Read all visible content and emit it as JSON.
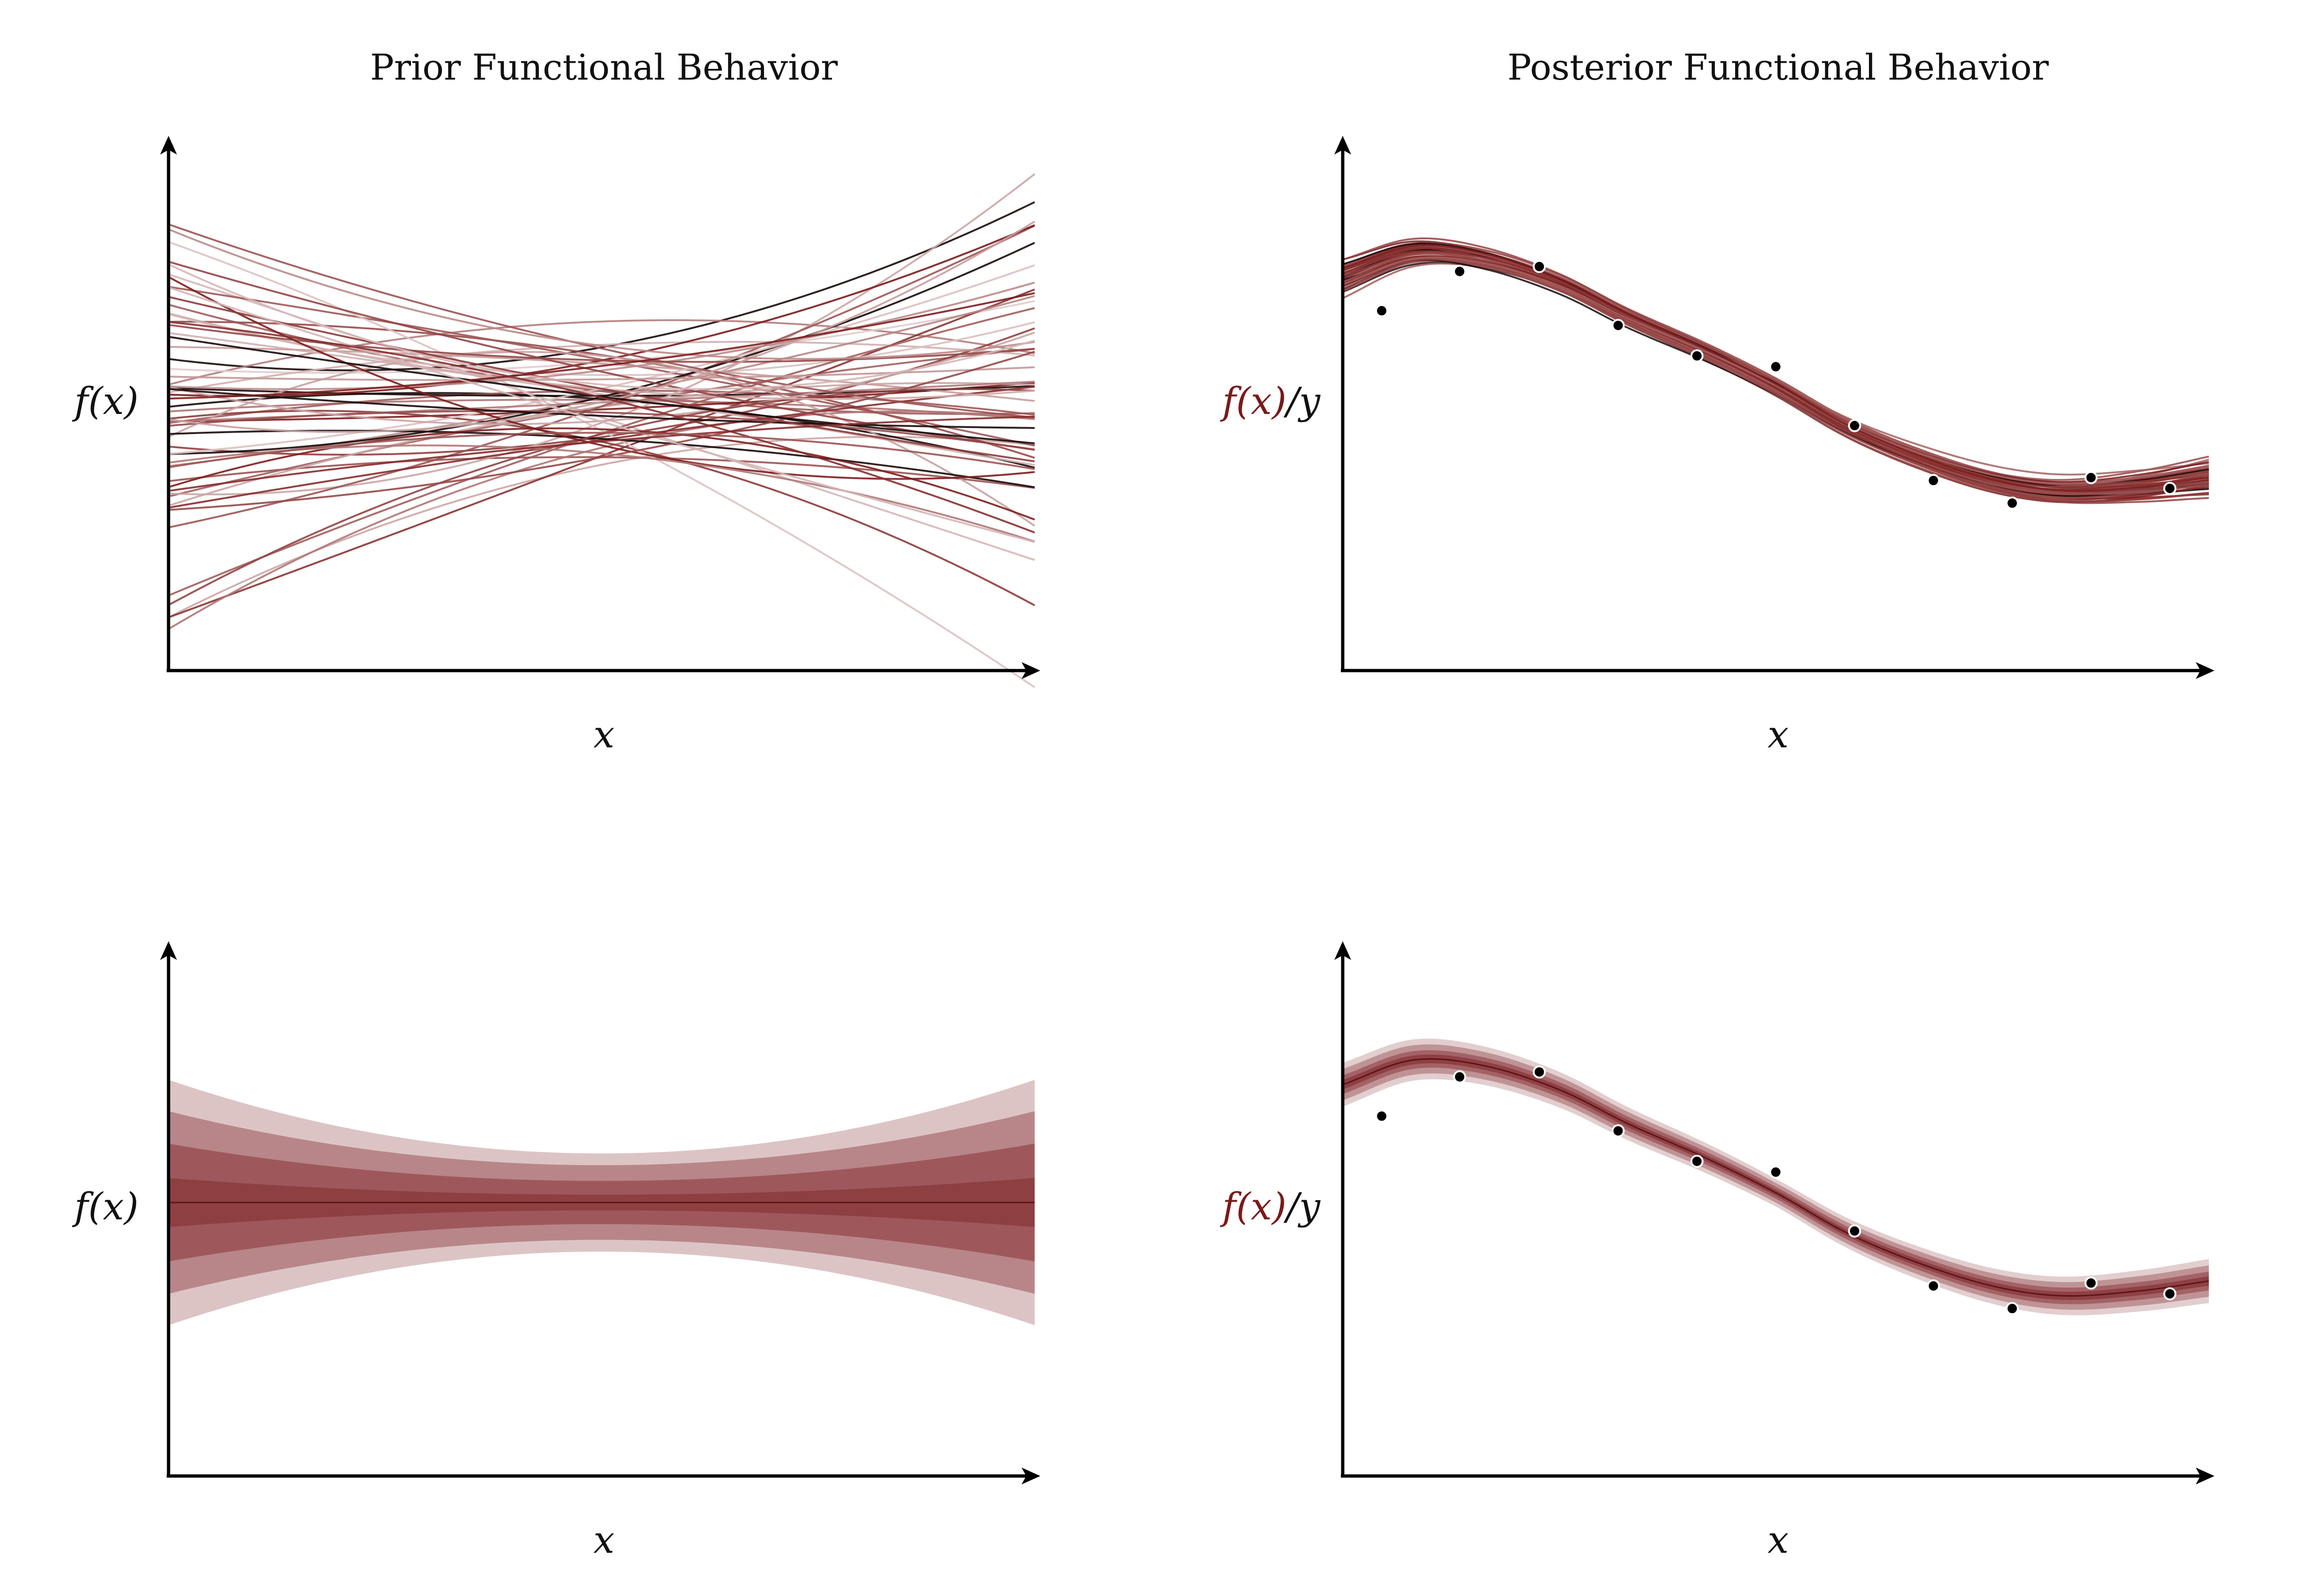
{
  "colors": {
    "accent": "#7a1a1a",
    "band": "#8c3b3f",
    "point_fill": "#000000",
    "point_stroke": "#ffffff"
  },
  "chart_data": [
    {
      "id": "prior-draws",
      "type": "line",
      "title": "Prior Functional Behavior",
      "xlabel": "x",
      "ylabel": "f(x)",
      "xlim": [
        0,
        1
      ],
      "ylim": [
        -2.7,
        2.7
      ],
      "grid": false,
      "n_draws": 60,
      "draw_form": "quadratic",
      "description": "random quadratic draws from the prior"
    },
    {
      "id": "posterior-draws",
      "type": "line",
      "title": "Posterior Functional Behavior",
      "xlabel": "x",
      "ylabel_colored": "f(x)",
      "ylabel_rest": "/y",
      "xlim": [
        0,
        1
      ],
      "ylim": [
        -2.7,
        2.7
      ],
      "grid": false,
      "n_draws": 40,
      "posterior_mean_curve": {
        "x": [
          0,
          0.08,
          0.16,
          0.25,
          0.33,
          0.42,
          0.5,
          0.58,
          0.66,
          0.75,
          0.83,
          0.92,
          1.0
        ],
        "y": [
          1.2,
          1.45,
          1.4,
          1.15,
          0.8,
          0.45,
          0.1,
          -0.3,
          -0.6,
          -0.85,
          -0.95,
          -0.9,
          -0.8
        ]
      },
      "observations": {
        "x": [
          0.045,
          0.135,
          0.227,
          0.318,
          0.409,
          0.5,
          0.591,
          0.682,
          0.773,
          0.864,
          0.955
        ],
        "y": [
          0.88,
          1.28,
          1.33,
          0.73,
          0.42,
          0.31,
          -0.29,
          -0.85,
          -1.08,
          -0.82,
          -0.93
        ]
      }
    },
    {
      "id": "prior-bands",
      "type": "area",
      "xlabel": "x",
      "ylabel": "f(x)",
      "xlim": [
        0,
        1
      ],
      "ylim": [
        -2.7,
        2.7
      ],
      "grid": false,
      "mean": 0,
      "band_half_widths_at_edge": [
        0.25,
        0.6,
        0.93,
        1.25
      ],
      "band_half_widths_at_center": [
        0.08,
        0.22,
        0.38,
        0.5
      ],
      "band_opacities": [
        0.88,
        0.6,
        0.45,
        0.3
      ]
    },
    {
      "id": "posterior-bands",
      "type": "area",
      "xlabel": "x",
      "ylabel_colored": "f(x)",
      "ylabel_rest": "/y",
      "xlim": [
        0,
        1
      ],
      "ylim": [
        -2.7,
        2.7
      ],
      "grid": false,
      "band_half_widths": [
        0.03,
        0.06,
        0.1,
        0.14
      ],
      "band_opacities": [
        0.85,
        0.55,
        0.4,
        0.25
      ],
      "observations": {
        "x": [
          0.045,
          0.135,
          0.227,
          0.318,
          0.409,
          0.5,
          0.591,
          0.682,
          0.773,
          0.864,
          0.955
        ],
        "y": [
          0.88,
          1.28,
          1.33,
          0.73,
          0.42,
          0.31,
          -0.29,
          -0.85,
          -1.08,
          -0.82,
          -0.93
        ]
      }
    }
  ]
}
